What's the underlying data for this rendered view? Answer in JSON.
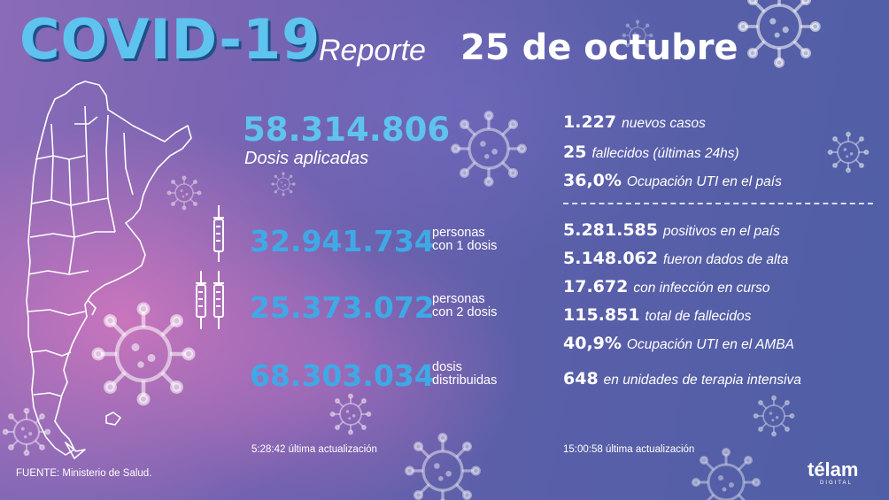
{
  "header": {
    "title": "COVID-19",
    "subtitle": "Reporte",
    "date": "25 de octubre"
  },
  "vaccines": {
    "total": "58.314.806",
    "total_label": "Dosis aplicadas",
    "one_dose": {
      "value": "32.941.734",
      "label_line1": "personas",
      "label_line2": "con 1 dosis"
    },
    "two_doses": {
      "value": "25.373.072",
      "label_line1": "personas",
      "label_line2": "con 2 dosis"
    },
    "distributed": {
      "value": "68.303.034",
      "label_line1": "dosis",
      "label_line2": "distribuidas"
    },
    "updated": "5:28:42 última actualización"
  },
  "daily": [
    {
      "value": "1.227",
      "label": "nuevos casos"
    },
    {
      "value": "25",
      "label": "fallecidos (últimas 24hs)"
    },
    {
      "value": "36,0%",
      "label": "Ocupación UTI en el país"
    }
  ],
  "totals": [
    {
      "value": "5.281.585",
      "label": "positivos en el país"
    },
    {
      "value": "5.148.062",
      "label": "fueron dados de alta"
    },
    {
      "value": "17.672",
      "label": "con infección en curso"
    },
    {
      "value": "115.851",
      "label": "total de fallecidos"
    },
    {
      "value": "40,9%",
      "label": "Ocupación UTI en el AMBA"
    },
    {
      "value": "648",
      "label": "en unidades de terapia intensiva"
    }
  ],
  "stats_updated": "15:00:58 última actualización",
  "source": "FUENTE: Ministerio de Salud.",
  "logo": {
    "name": "télam",
    "sub": "DIGITAL"
  },
  "colors": {
    "accent": "#5ec3ee",
    "accent_dark": "#3fa9e6",
    "title_shadow": "#1e4f87"
  },
  "icons": [
    "argentina-map-icon",
    "syringe-icon",
    "virus-icon"
  ]
}
